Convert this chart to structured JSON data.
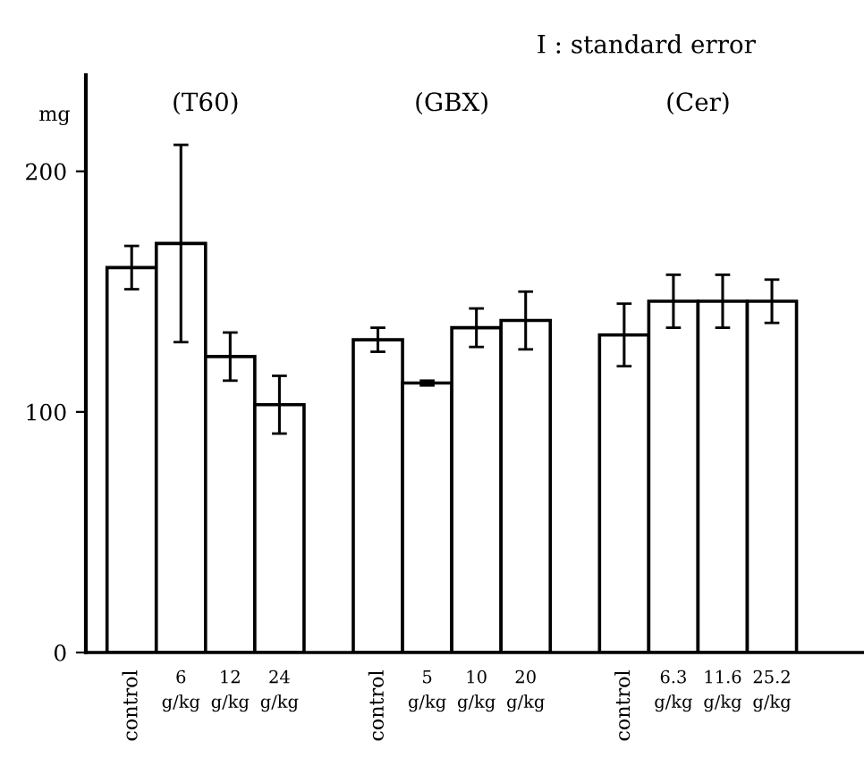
{
  "chart_data": {
    "type": "bar",
    "ylabel": "mg",
    "categories": [
      "control",
      "6\ng/kg",
      "12\ng/kg",
      "24\ng/kg",
      null,
      "control",
      "5\ng/kg",
      "10\ng/kg",
      "20\ng/kg",
      null,
      "control",
      "6.3\ng/kg",
      "11.6\ng/kg",
      "25.2\ng/kg"
    ],
    "values": [
      160,
      170,
      123,
      103,
      null,
      130,
      112,
      135,
      138,
      null,
      132,
      146,
      146,
      146
    ],
    "errors": [
      9,
      41,
      10,
      12,
      null,
      5,
      1,
      8,
      12,
      null,
      13,
      11,
      11,
      9
    ],
    "colors": [
      "#ffffff",
      "#ffffff",
      "#ffffff",
      "#ffffff",
      null,
      "#ffffff",
      "#ffffff",
      "#ffffff",
      "#ffffff",
      null,
      "#ffffff",
      "#ffffff",
      "#ffffff",
      "#ffffff"
    ],
    "ylim": [
      0,
      240
    ],
    "yticks": [
      0,
      100,
      200
    ],
    "grid": false,
    "annotations": [
      "(T60)",
      "(GBX)",
      "(Cer)",
      "I : standard error"
    ]
  }
}
